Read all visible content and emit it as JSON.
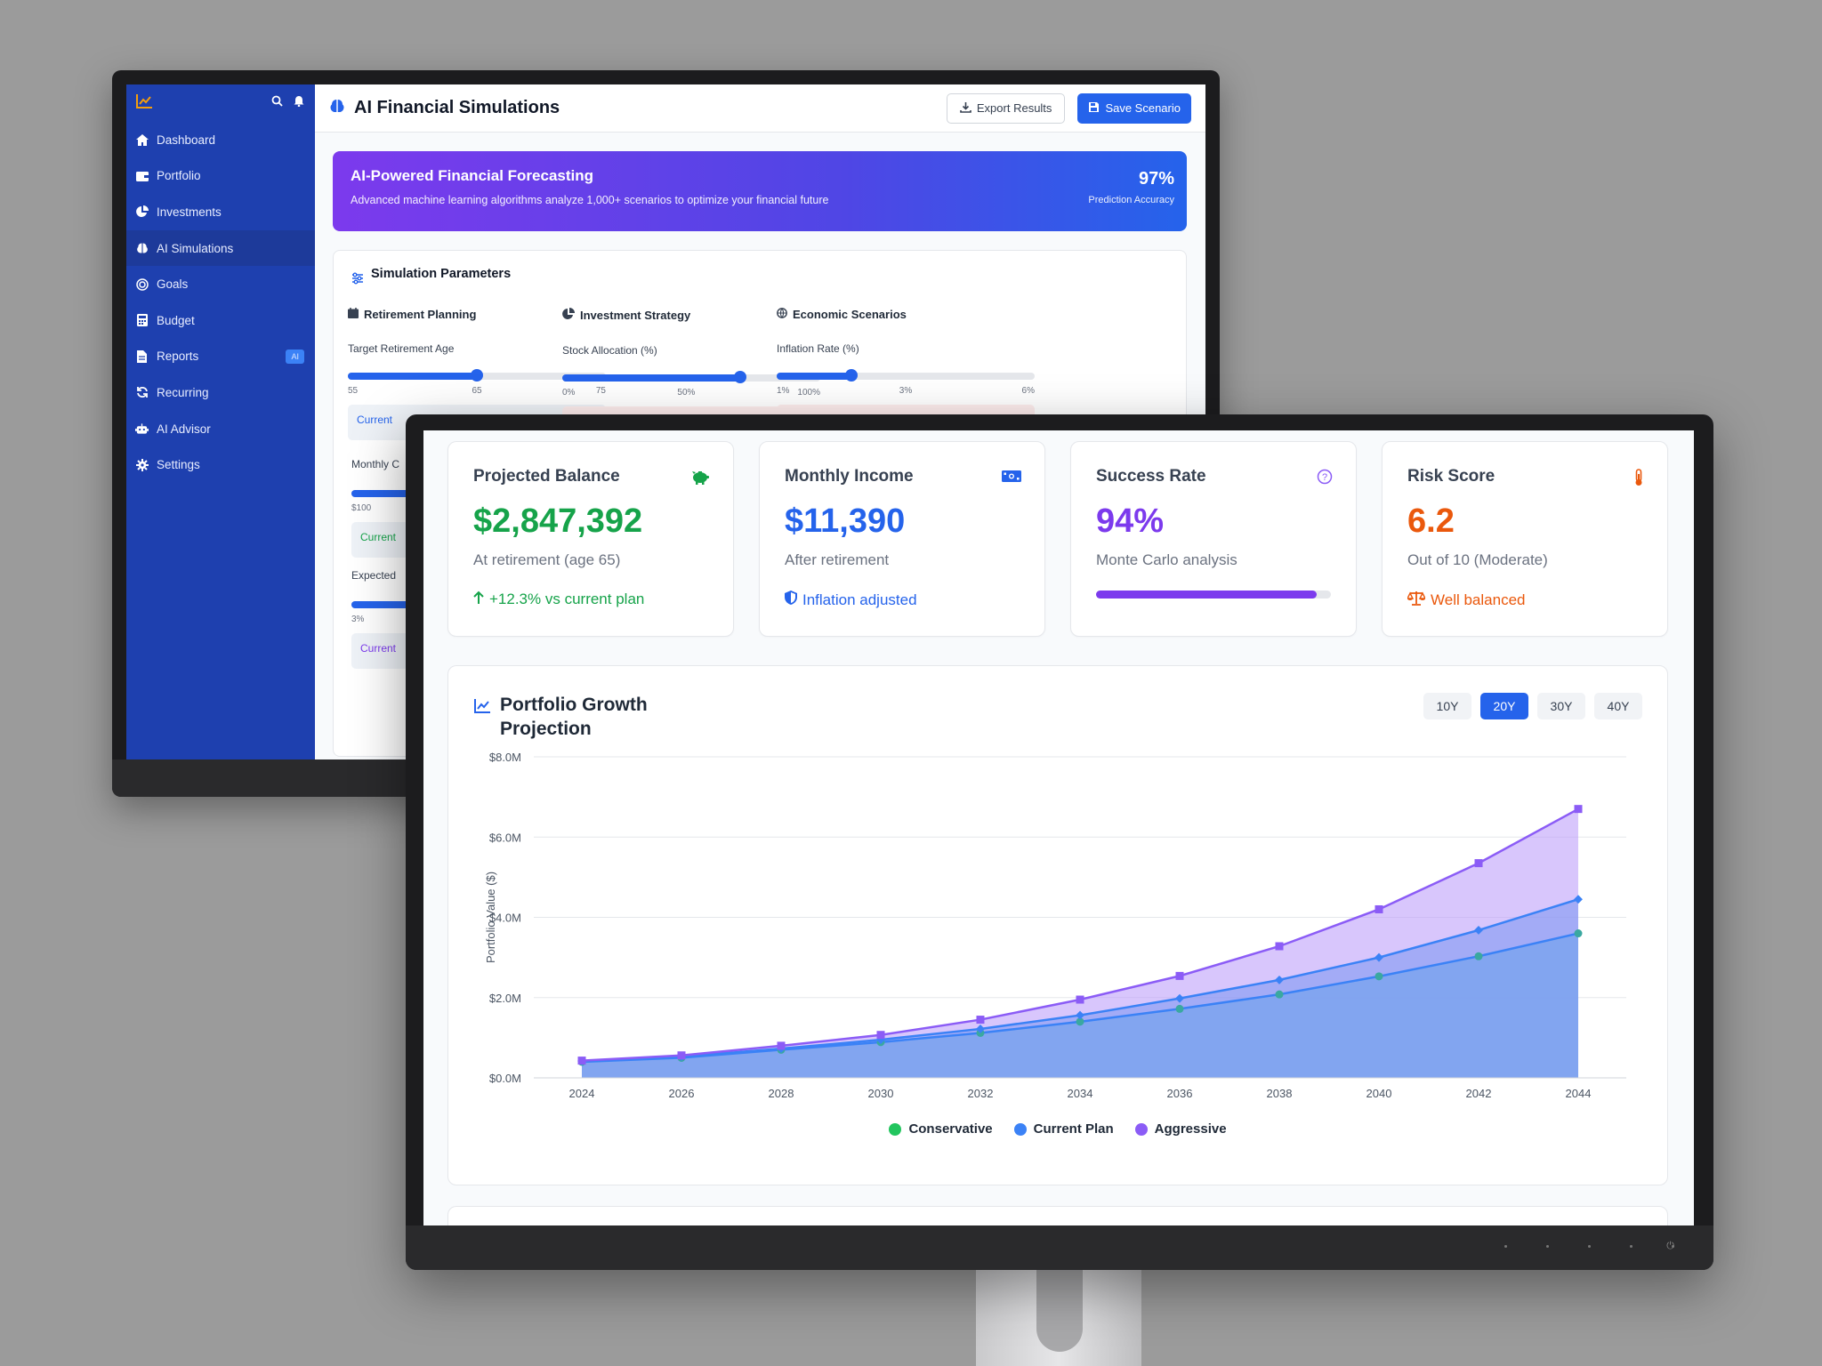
{
  "back": {
    "header_title": "AI Financial Simulations",
    "export_label": "Export Results",
    "save_label": "Save Scenario",
    "nav": [
      {
        "label": "Dashboard",
        "icon": "home-icon"
      },
      {
        "label": "Portfolio",
        "icon": "wallet-icon"
      },
      {
        "label": "Investments",
        "icon": "pie-chart-icon"
      },
      {
        "label": "AI Simulations",
        "icon": "brain-icon",
        "active": true
      },
      {
        "label": "Goals",
        "icon": "target-icon"
      },
      {
        "label": "Budget",
        "icon": "calculator-icon"
      },
      {
        "label": "Reports",
        "icon": "file-icon",
        "badge": "AI"
      },
      {
        "label": "Recurring",
        "icon": "refresh-icon"
      },
      {
        "label": "AI Advisor",
        "icon": "robot-icon"
      },
      {
        "label": "Settings",
        "icon": "gear-icon"
      }
    ],
    "hero": {
      "title": "AI-Powered Financial Forecasting",
      "subtitle": "Advanced machine learning algorithms analyze 1,000+ scenarios to optimize your financial future",
      "accuracy_value": "97%",
      "accuracy_label": "Prediction Accuracy"
    },
    "params": {
      "title": "Simulation Parameters",
      "columns": [
        {
          "heading": "Retirement Planning",
          "icon": "calendar-icon",
          "label": "Target Retirement Age",
          "ticks": [
            "55",
            "65",
            "75"
          ],
          "fraction": 0.5,
          "current": "Current"
        },
        {
          "heading": "Investment Strategy",
          "icon": "pie-chart-icon",
          "label": "Stock Allocation (%)",
          "ticks": [
            "0%",
            "50%",
            "100%"
          ],
          "fraction": 0.69
        },
        {
          "heading": "Economic Scenarios",
          "icon": "globe-icon",
          "label": "Inflation Rate (%)",
          "ticks": [
            "1%",
            "3%",
            "6%"
          ],
          "fraction": 0.29
        }
      ],
      "row2": {
        "label": "Monthly C",
        "tick": "$100",
        "current": "Current"
      },
      "row3": {
        "label": "Expected",
        "tick": "3%",
        "current": "Current"
      }
    }
  },
  "front": {
    "cards": [
      {
        "title": "Projected Balance",
        "icon": "piggy-bank-icon",
        "value": "$2,847,392",
        "sub": "At retirement (age 65)",
        "foot": "+12.3% vs current plan",
        "color": "#16a34a",
        "foot_icon": "arrow-up-icon"
      },
      {
        "title": "Monthly Income",
        "icon": "money-icon",
        "value": "$11,390",
        "sub": "After retirement",
        "foot": "Inflation adjusted",
        "color": "#2563eb",
        "foot_icon": "shield-icon"
      },
      {
        "title": "Success Rate",
        "icon": "question-circle-icon",
        "value": "94%",
        "sub": "Monte Carlo analysis",
        "progress": 0.94,
        "color": "#7c3aed"
      },
      {
        "title": "Risk Score",
        "icon": "thermometer-icon",
        "value": "6.2",
        "sub": "Out of 10 (Moderate)",
        "foot": "Well balanced",
        "color": "#ea580c",
        "foot_icon": "balance-scale-icon"
      }
    ],
    "chart_title": "Portfolio Growth Projection",
    "periods": [
      "10Y",
      "20Y",
      "30Y",
      "40Y"
    ],
    "active_period": "20Y"
  },
  "chart_data": {
    "type": "area",
    "title": "Portfolio Growth Projection",
    "ylabel": "Portfolio Value ($)",
    "xlabel": "",
    "categories": [
      "2024",
      "2026",
      "2028",
      "2030",
      "2032",
      "2034",
      "2036",
      "2038",
      "2040",
      "2042",
      "2044"
    ],
    "ylim": [
      0,
      8
    ],
    "yticks": [
      "$0.0M",
      "$2.0M",
      "$4.0M",
      "$6.0M",
      "$8.0M"
    ],
    "grid": true,
    "legend_position": "bottom",
    "series": [
      {
        "name": "Conservative",
        "color": "#22c55e",
        "line": "#3b82f6",
        "values": [
          0.4,
          0.5,
          0.7,
          0.89,
          1.12,
          1.4,
          1.72,
          2.08,
          2.53,
          3.03,
          3.6
        ]
      },
      {
        "name": "Current Plan",
        "color": "#3b82f6",
        "line": "#3b82f6",
        "values": [
          0.42,
          0.53,
          0.73,
          0.95,
          1.22,
          1.56,
          1.98,
          2.44,
          3.0,
          3.68,
          4.45
        ]
      },
      {
        "name": "Aggressive",
        "color": "#8b5cf6",
        "line": "#8b5cf6",
        "values": [
          0.43,
          0.56,
          0.8,
          1.07,
          1.45,
          1.95,
          2.54,
          3.28,
          4.2,
          5.35,
          6.7
        ]
      }
    ]
  }
}
